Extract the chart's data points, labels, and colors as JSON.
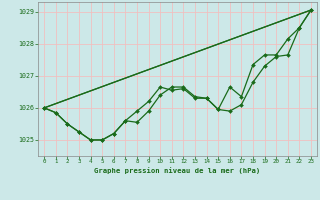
{
  "title": "Graphe pression niveau de la mer (hPa)",
  "bg_color": "#cce8e8",
  "grid_color": "#f0c0c0",
  "line_color": "#1a6b1a",
  "xlim": [
    -0.5,
    23.5
  ],
  "ylim": [
    1024.5,
    1029.3
  ],
  "yticks": [
    1025,
    1026,
    1027,
    1028,
    1029
  ],
  "xticks": [
    0,
    1,
    2,
    3,
    4,
    5,
    6,
    7,
    8,
    9,
    10,
    11,
    12,
    13,
    14,
    15,
    16,
    17,
    18,
    19,
    20,
    21,
    22,
    23
  ],
  "series1_x": [
    0,
    1,
    2,
    3,
    4,
    5,
    6,
    7,
    8,
    9,
    10,
    11,
    12,
    13,
    14,
    15,
    16,
    17,
    18,
    19,
    20,
    21,
    22,
    23
  ],
  "series1_y": [
    1026.0,
    1025.85,
    1025.5,
    1025.25,
    1025.0,
    1025.0,
    1025.2,
    1025.6,
    1025.55,
    1025.9,
    1026.4,
    1026.65,
    1026.65,
    1026.35,
    1026.3,
    1025.95,
    1025.9,
    1026.1,
    1026.8,
    1027.3,
    1027.6,
    1027.65,
    1028.5,
    1029.05
  ],
  "series2_x": [
    0,
    1,
    2,
    3,
    4,
    5,
    6,
    7,
    8,
    9,
    10,
    11,
    12,
    13,
    14,
    15,
    16,
    17,
    18,
    19,
    20,
    21,
    22,
    23
  ],
  "series2_y": [
    1026.0,
    1025.85,
    1025.5,
    1025.25,
    1025.0,
    1025.0,
    1025.2,
    1025.6,
    1025.9,
    1026.2,
    1026.65,
    1026.55,
    1026.6,
    1026.3,
    1026.3,
    1025.95,
    1026.65,
    1026.35,
    1027.35,
    1027.65,
    1027.65,
    1028.15,
    1028.5,
    1029.05
  ],
  "series3_x": [
    0,
    23
  ],
  "series3_y": [
    1026.0,
    1029.05
  ],
  "series4_x": [
    0,
    23
  ],
  "series4_y": [
    1026.0,
    1029.05
  ]
}
